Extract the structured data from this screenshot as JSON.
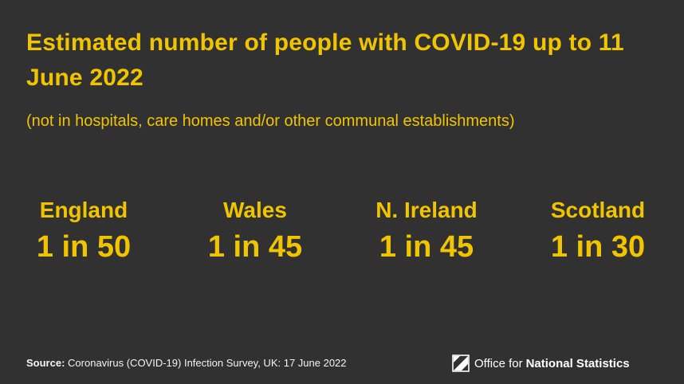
{
  "title": "Estimated number of people with COVID-19 up to 11 June 2022",
  "subtitle": "(not in hospitals, care homes and/or other communal establishments)",
  "stats": [
    {
      "region": "England",
      "ratio": "1 in 50"
    },
    {
      "region": "Wales",
      "ratio": "1 in 45"
    },
    {
      "region": "N. Ireland",
      "ratio": "1 in 45"
    },
    {
      "region": "Scotland",
      "ratio": "1 in 30"
    }
  ],
  "source": {
    "label": "Source:",
    "text": "Coronavirus (COVID-19) Infection Survey, UK: 17 June 2022"
  },
  "logo": {
    "light": "Office for",
    "bold": "National Statistics",
    "icon": "ons-logo-icon"
  },
  "colors": {
    "background": "#323132",
    "accent": "#f1c400",
    "text_light": "#f4f4f4"
  }
}
